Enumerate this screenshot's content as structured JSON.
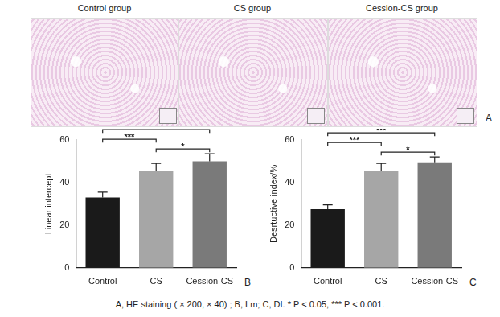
{
  "panel_a": {
    "titles": [
      "Control group",
      "CS group",
      "Cession-CS group"
    ],
    "label": "A"
  },
  "chart_data": [
    {
      "type": "bar",
      "label": "B",
      "y_label": "Linear intercept",
      "categories": [
        "Control",
        "CS",
        "Cession-CS"
      ],
      "values": [
        33,
        45.5,
        50
      ],
      "errors": [
        2.5,
        3.5,
        3.5
      ],
      "colors": [
        "#1a1a1a",
        "#a6a6a6",
        "#7a7a7a"
      ],
      "ylim": [
        0,
        60
      ],
      "yticks": [
        0,
        20,
        40,
        60
      ],
      "grid": false,
      "significance": [
        {
          "from": "CS",
          "to": "Cession-CS",
          "label": "*"
        },
        {
          "from": "Control",
          "to": "CS",
          "label": "***"
        },
        {
          "from": "Control",
          "to": "Cession-CS",
          "label": "***"
        }
      ]
    },
    {
      "type": "bar",
      "label": "C",
      "y_label": "Desrtuctive index/%",
      "categories": [
        "Control",
        "CS",
        "Cession-CS"
      ],
      "values": [
        27.5,
        45.5,
        49.5
      ],
      "errors": [
        2,
        3.5,
        2.5
      ],
      "colors": [
        "#1a1a1a",
        "#a6a6a6",
        "#7a7a7a"
      ],
      "ylim": [
        0,
        60
      ],
      "yticks": [
        0,
        20,
        40,
        60
      ],
      "grid": false,
      "significance": [
        {
          "from": "CS",
          "to": "Cession-CS",
          "label": "*"
        },
        {
          "from": "Control",
          "to": "CS",
          "label": "***"
        },
        {
          "from": "Control",
          "to": "Cession-CS",
          "label": "***"
        }
      ]
    }
  ],
  "caption": "A, HE staining ( × 200, × 40) ; B, Lm; C, DI. * P < 0.05, *** P < 0.001."
}
